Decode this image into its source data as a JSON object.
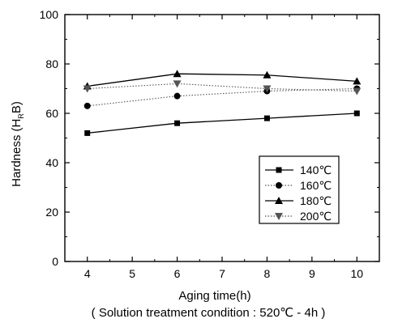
{
  "chart_data": {
    "type": "line",
    "xlabel": "Aging time(h)",
    "subtitle": "( Solution treatment condition : 520℃ - 4h )",
    "ylabel": {
      "main": "Hardness (H",
      "sub": "R",
      "tail": "B)"
    },
    "xlim": [
      3.5,
      10.5
    ],
    "ylim": [
      0,
      100
    ],
    "xticks": [
      4,
      5,
      6,
      7,
      8,
      9,
      10
    ],
    "yticks": [
      0,
      20,
      40,
      60,
      80,
      100
    ],
    "grid": false,
    "legend_position": "center-right",
    "x": [
      4,
      6,
      8,
      10
    ],
    "series": [
      {
        "name": "140℃",
        "marker": "square",
        "line": "solid",
        "values": [
          52,
          56,
          58,
          60
        ]
      },
      {
        "name": "160℃",
        "marker": "circle",
        "line": "dotted",
        "values": [
          63,
          67,
          69,
          70
        ]
      },
      {
        "name": "180℃",
        "marker": "triangle",
        "line": "solid",
        "values": [
          71,
          76,
          75.5,
          73
        ]
      },
      {
        "name": "200℃",
        "marker": "triangle-down",
        "line": "dotted",
        "values": [
          70,
          72,
          70,
          69
        ]
      }
    ]
  }
}
